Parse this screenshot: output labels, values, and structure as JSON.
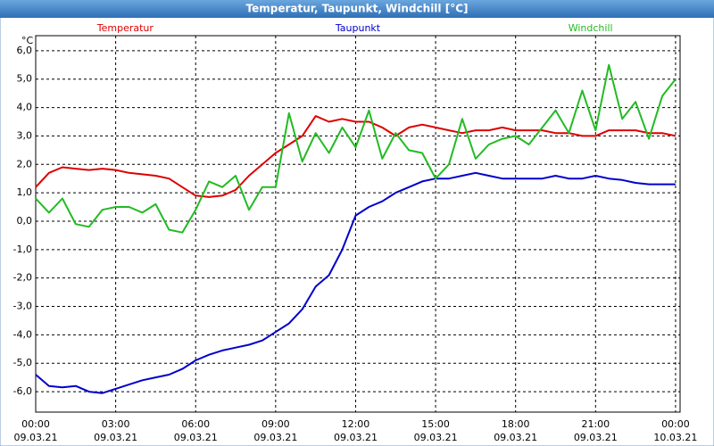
{
  "chart_data": {
    "type": "line",
    "title": "Temperatur, Taupunkt, Windchill [°C]",
    "unit": "°C",
    "x": [
      0,
      0.5,
      1,
      1.5,
      2,
      2.5,
      3,
      3.5,
      4,
      4.5,
      5,
      5.5,
      6,
      6.5,
      7,
      7.5,
      8,
      8.5,
      9,
      9.5,
      10,
      10.5,
      11,
      11.5,
      12,
      12.5,
      13,
      13.5,
      14,
      14.5,
      15,
      15.5,
      16,
      16.5,
      17,
      17.5,
      18,
      18.5,
      19,
      19.5,
      20,
      20.5,
      21,
      21.5,
      22,
      22.5,
      23,
      23.5,
      24
    ],
    "series": [
      {
        "name": "Temperatur",
        "color": "#dd0000",
        "values": [
          1.2,
          1.7,
          1.9,
          1.85,
          1.8,
          1.85,
          1.8,
          1.7,
          1.65,
          1.6,
          1.5,
          1.2,
          0.9,
          0.85,
          0.9,
          1.1,
          1.6,
          2.0,
          2.4,
          2.7,
          3.0,
          3.7,
          3.5,
          3.6,
          3.5,
          3.5,
          3.3,
          3.0,
          3.3,
          3.4,
          3.3,
          3.2,
          3.1,
          3.2,
          3.2,
          3.3,
          3.2,
          3.2,
          3.2,
          3.1,
          3.1,
          3.0,
          3.0,
          3.2,
          3.2,
          3.2,
          3.1,
          3.1,
          3.0
        ]
      },
      {
        "name": "Taupunkt",
        "color": "#0000cc",
        "values": [
          -5.4,
          -5.8,
          -5.85,
          -5.8,
          -6.0,
          -6.05,
          -5.9,
          -5.75,
          -5.6,
          -5.5,
          -5.4,
          -5.2,
          -4.9,
          -4.7,
          -4.55,
          -4.45,
          -4.35,
          -4.2,
          -3.9,
          -3.6,
          -3.1,
          -2.3,
          -1.9,
          -1.0,
          0.2,
          0.5,
          0.7,
          1.0,
          1.2,
          1.4,
          1.5,
          1.5,
          1.6,
          1.7,
          1.6,
          1.5,
          1.5,
          1.5,
          1.5,
          1.6,
          1.5,
          1.5,
          1.6,
          1.5,
          1.45,
          1.35,
          1.3,
          1.3,
          1.3
        ]
      },
      {
        "name": "Windchill",
        "color": "#22bb22",
        "values": [
          0.8,
          0.3,
          0.8,
          -0.1,
          -0.2,
          0.4,
          0.5,
          0.5,
          0.3,
          0.6,
          -0.3,
          -0.4,
          0.4,
          1.4,
          1.2,
          1.6,
          0.4,
          1.2,
          1.2,
          3.8,
          2.1,
          3.1,
          2.4,
          3.3,
          2.6,
          3.9,
          2.2,
          3.1,
          2.5,
          2.4,
          1.5,
          2.0,
          3.6,
          2.2,
          2.7,
          2.9,
          3.0,
          2.7,
          3.3,
          3.9,
          3.1,
          4.6,
          3.2,
          5.5,
          3.6,
          4.2,
          2.9,
          4.4,
          5.0
        ]
      }
    ],
    "xlim": [
      0,
      24.17
    ],
    "ylim": [
      -6.72,
      6.53
    ],
    "xticks": [
      {
        "value": 0,
        "label": "00:00",
        "date": "09.03.21"
      },
      {
        "value": 3,
        "label": "03:00",
        "date": "09.03.21"
      },
      {
        "value": 6,
        "label": "06:00",
        "date": "09.03.21"
      },
      {
        "value": 9,
        "label": "09:00",
        "date": "09.03.21"
      },
      {
        "value": 12,
        "label": "12:00",
        "date": "09.03.21"
      },
      {
        "value": 15,
        "label": "15:00",
        "date": "09.03.21"
      },
      {
        "value": 18,
        "label": "18:00",
        "date": "09.03.21"
      },
      {
        "value": 21,
        "label": "21:00",
        "date": "09.03.21"
      },
      {
        "value": 24,
        "label": "00:00",
        "date": "10.03.21"
      }
    ],
    "yticks": [
      {
        "value": -6,
        "label": "-6,0"
      },
      {
        "value": -5,
        "label": "-5,0"
      },
      {
        "value": -4,
        "label": "-4,0"
      },
      {
        "value": -3,
        "label": "-3,0"
      },
      {
        "value": -2,
        "label": "-2,0"
      },
      {
        "value": -1,
        "label": "-1,0"
      },
      {
        "value": 0,
        "label": "0,0"
      },
      {
        "value": 1,
        "label": "1,0"
      },
      {
        "value": 2,
        "label": "2,0"
      },
      {
        "value": 3,
        "label": "3,0"
      },
      {
        "value": 4,
        "label": "4,0"
      },
      {
        "value": 5,
        "label": "5,0"
      },
      {
        "value": 6,
        "label": "6,0"
      }
    ],
    "grid": true
  }
}
